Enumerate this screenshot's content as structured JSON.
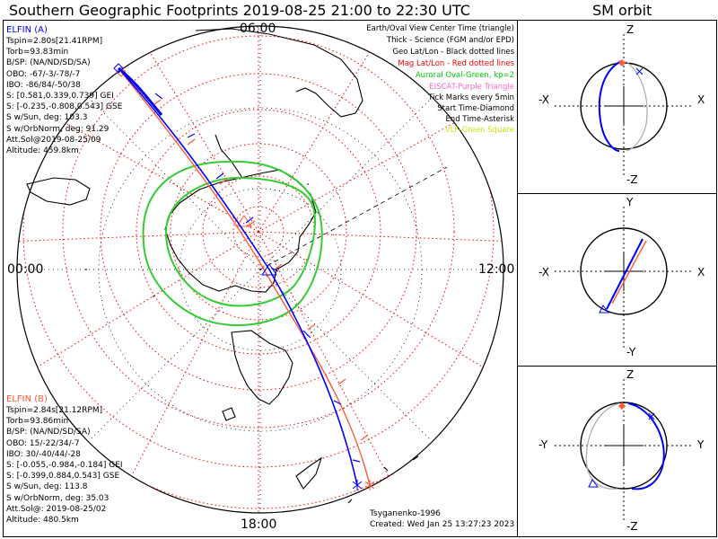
{
  "title": "Southern Geographic Footprints 2019-08-25 21:00 to 22:30 UTC",
  "sm_title": "SM orbit",
  "hour_labels": {
    "top": "06:00",
    "right": "12:00",
    "bottom": "18:00",
    "left": "00:00"
  },
  "legend": [
    {
      "text": "Earth/Oval View Center Time (triangle)",
      "color": "#000000"
    },
    {
      "text": "Thick - Science (FGM and/or EPD)",
      "color": "#000000"
    },
    {
      "text": "Geo Lat/Lon - Black dotted lines",
      "color": "#000000"
    },
    {
      "text": "Mag Lat/Lon - Red dotted lines",
      "color": "#ff0000"
    },
    {
      "text": "Auroral Oval-Green, kp=2",
      "color": "#00cc00"
    },
    {
      "text": "EISCAT-Purple Triangle",
      "color": "#ff66cc"
    },
    {
      "text": "Tick Marks every 5min",
      "color": "#000000"
    },
    {
      "text": "Start Time-Diamond",
      "color": "#000000"
    },
    {
      "text": "End Time-Asterisk",
      "color": "#000000"
    },
    {
      "text": "VLF-Green Square",
      "color": "#ccdd00"
    }
  ],
  "elfin_a": {
    "name": "ELFIN (A)",
    "color": "#0000ff",
    "lines": [
      "Tspin=2.80s[21.41RPM]",
      "Torb=93.83min",
      "B/SP: (NA/ND/SD/SA)",
      "OBO: -67/-3/-78/-7",
      "IBO: -86/84/-50/38",
      "S: [0.581,0.339,0.739] GEI",
      "S: [-0.235,-0.808,0.543] GSE",
      "S w/Sun, deg: 103.3",
      "S w/OrbNorm, deg: 91.29",
      "Att.Sol@2019-08-25/09",
      "Altitude: 459.8km"
    ]
  },
  "elfin_b": {
    "name": "ELFIN (B)",
    "color": "#ff5a36",
    "lines": [
      "Tspin=2.84s[21.12RPM]",
      "Torb=93.86min",
      "B/SP: (NA/ND/SD/SA)",
      "OBO: 15/-22/34/-7",
      "IBO: 30/-40/44/-28",
      "S: [-0.055,-0.984,-0.184] GEI",
      "S: [-0.399,0.884,0.543] GSE",
      "S w/Sun, deg: 113.8",
      "S w/OrbNorm, deg: 35.03",
      "Att.Sol@: 2019-08-25/02",
      "Altitude: 480.5km"
    ]
  },
  "footer": {
    "model": "Tsyganenko-1996",
    "created": "Created: Wed Jan 25 13:27:23 2023"
  },
  "sm_panels": [
    {
      "top": "Z",
      "bottom": "-Z",
      "left": "-X",
      "right": "X"
    },
    {
      "top": "Y",
      "bottom": "-Y",
      "left": "-X",
      "right": "X"
    },
    {
      "top": "Z",
      "bottom": "-Z",
      "left": "-Y",
      "right": "Y"
    }
  ],
  "colors": {
    "elfin_a": "#0000ff",
    "elfin_b": "#ff5a36",
    "auroral_oval": "#33cc33",
    "geo_grid": "#000000",
    "mag_grid": "#ff0000",
    "land": "#000000"
  }
}
